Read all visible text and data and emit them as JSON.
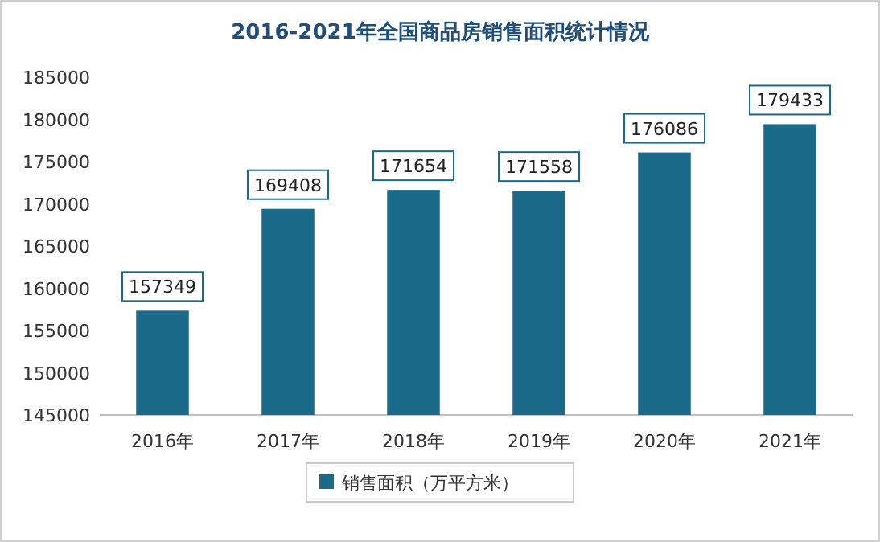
{
  "chart_data": {
    "type": "bar",
    "title": "2016-2021年全国商品房销售面积统计情况",
    "categories": [
      "2016年",
      "2017年",
      "2018年",
      "2019年",
      "2020年",
      "2021年"
    ],
    "series": [
      {
        "name": "销售面积（万平方米）",
        "color": "#1b6a8a",
        "values": [
          157349,
          169408,
          171654,
          171558,
          176086,
          179433
        ]
      }
    ],
    "ylim": [
      145000,
      185000
    ],
    "yticks": [
      145000,
      150000,
      155000,
      160000,
      165000,
      170000,
      175000,
      180000,
      185000
    ],
    "data_labels": true,
    "legend": "bottom",
    "grid": false
  }
}
